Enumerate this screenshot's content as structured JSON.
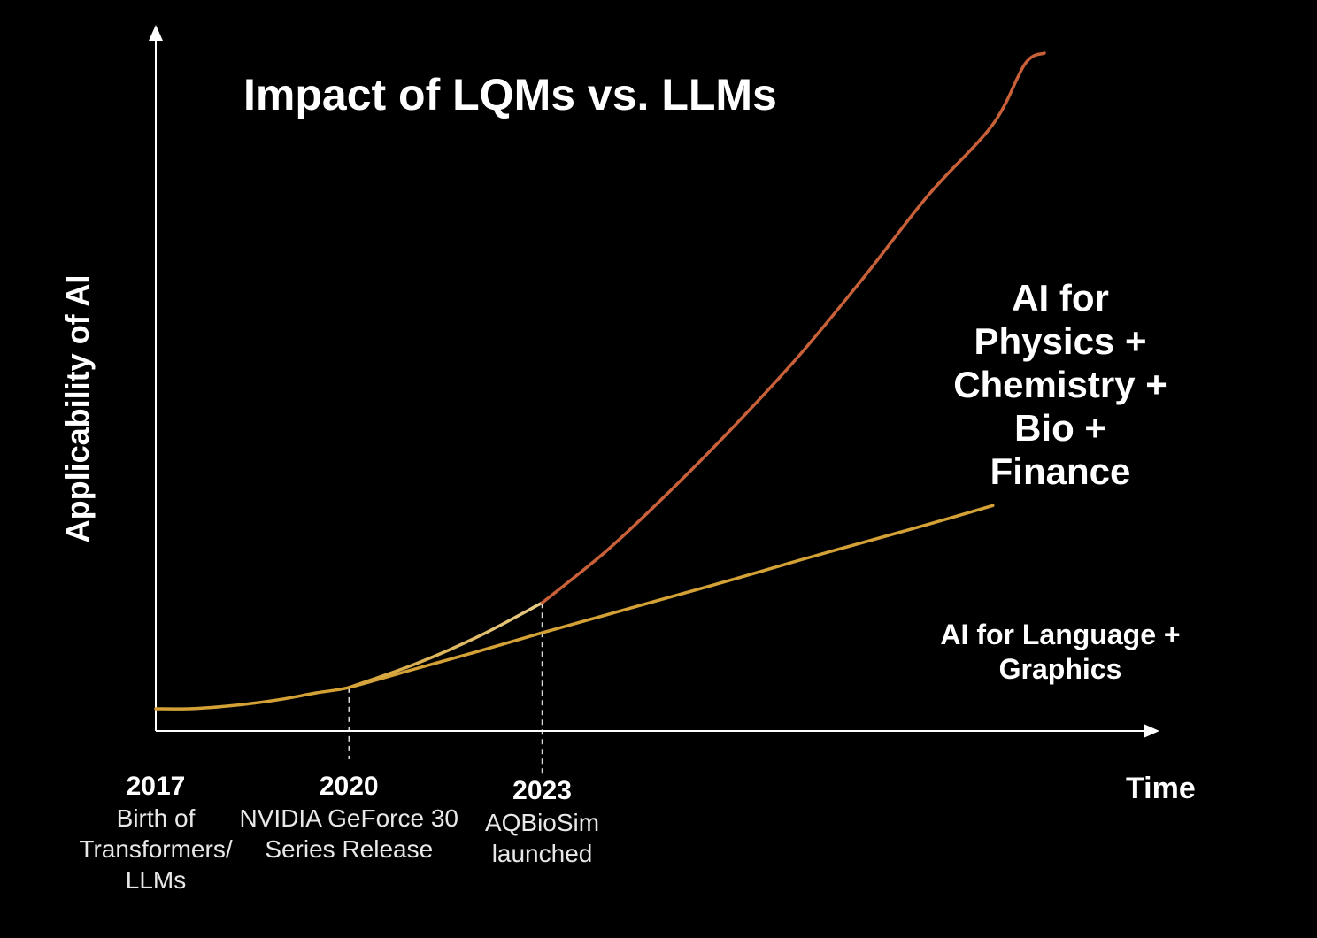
{
  "chart_data": {
    "type": "line",
    "title": "Impact of LQMs vs. LLMs",
    "xlabel": "Time",
    "ylabel": "Applicability of AI",
    "xlim": [
      2017,
      2030.8
    ],
    "ylim": [
      0,
      1
    ],
    "grid": false,
    "axis_color": "#ffffff",
    "ticks": [
      {
        "year": "2017",
        "value": 2017,
        "lines": [
          "Birth of",
          "Transformers/",
          "LLMs"
        ]
      },
      {
        "year": "2020",
        "value": 2020,
        "lines": [
          "NVIDIA GeForce 30",
          "Series Release"
        ]
      },
      {
        "year": "2023",
        "value": 2023,
        "lines": [
          "AQBioSim",
          "launched"
        ]
      }
    ],
    "series": [
      {
        "name": "AI for Language + Graphics",
        "label_lines": [
          "AI for Language +",
          "Graphics"
        ],
        "color": "#d4a136",
        "x": [
          2017,
          2017.5,
          2018,
          2018.5,
          2019,
          2019.5,
          2020,
          2021,
          2022,
          2023,
          2024,
          2025,
          2026,
          2027,
          2028,
          2029,
          2030
        ],
        "y": [
          0.016,
          0.016,
          0.019,
          0.024,
          0.031,
          0.04,
          0.048,
          0.075,
          0.102,
          0.13,
          0.157,
          0.184,
          0.211,
          0.239,
          0.266,
          0.293,
          0.321
        ]
      },
      {
        "name": "AI for Physics + Chemistry + Bio + Finance",
        "label_lines": [
          "AI for",
          "Physics +",
          "Chemistry +",
          "Bio +",
          "Finance"
        ],
        "color": "#e2c06c",
        "color_after": "#c8603a",
        "split_at": 2023,
        "x": [
          2020,
          2021,
          2022,
          2023,
          2024,
          2025,
          2026,
          2027,
          2028,
          2029,
          2030,
          2030.5,
          2030.8
        ],
        "y": [
          0.048,
          0.082,
          0.124,
          0.175,
          0.253,
          0.344,
          0.442,
          0.547,
          0.664,
          0.787,
          0.893,
          0.984,
          1.0
        ]
      }
    ]
  }
}
